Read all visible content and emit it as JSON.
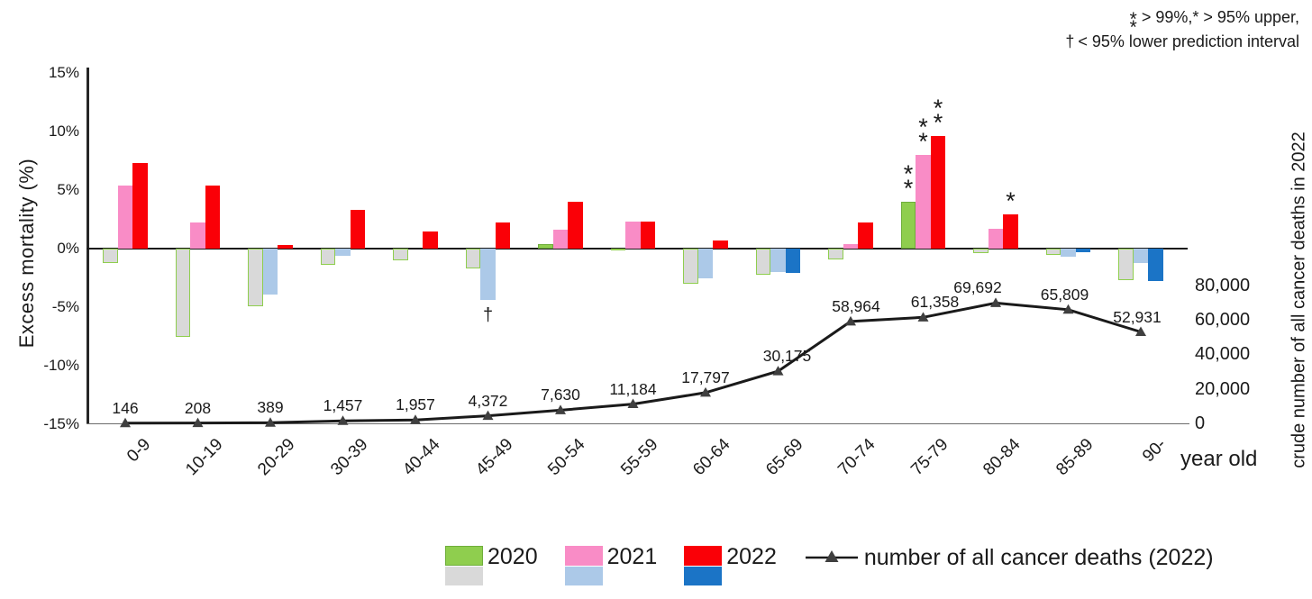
{
  "note": {
    "line1_marker": "**",
    "line1_text": "> 99%,* > 95% upper,",
    "line2_marker": "†",
    "line2_text": "< 95% lower prediction interval"
  },
  "left_axis": {
    "title": "Excess mortality  (%)",
    "labels": [
      "15%",
      "10%",
      "5%",
      "0%",
      "-5%",
      "-10%",
      "-15%"
    ],
    "values": [
      15,
      10,
      5,
      0,
      -5,
      -10,
      -15
    ]
  },
  "right_axis": {
    "title": "crude number of all cancer deaths in 2022",
    "labels": [
      "80,000",
      "60,000",
      "40,000",
      "20,000",
      "0"
    ],
    "values": [
      80000,
      60000,
      40000,
      20000,
      0
    ]
  },
  "x_axis": {
    "unit_label": "year old",
    "categories": [
      "0-9",
      "10-19",
      "20-29",
      "30-39",
      "40-44",
      "45-49",
      "50-54",
      "55-59",
      "60-64",
      "65-69",
      "70-74",
      "75-79",
      "80-84",
      "85-89",
      "90-"
    ]
  },
  "legend": {
    "items": [
      {
        "label": "2020"
      },
      {
        "label": "2021"
      },
      {
        "label": "2022"
      },
      {
        "label": "number of all cancer deaths (2022)"
      }
    ]
  },
  "chart_data": {
    "type": "bar",
    "title": "",
    "categories": [
      "0-9",
      "10-19",
      "20-29",
      "30-39",
      "40-44",
      "45-49",
      "50-54",
      "55-59",
      "60-64",
      "65-69",
      "70-74",
      "75-79",
      "80-84",
      "85-89",
      "90-"
    ],
    "ylabel_left": "Excess mortality  (%)",
    "ylabel_right": "crude number of all cancer deaths in 2022",
    "ylim_left_percent": [
      -15,
      15
    ],
    "right_axis_ticks": [
      0,
      20000,
      40000,
      60000,
      80000
    ],
    "grid": false,
    "legend_position": "bottom",
    "series": [
      {
        "name": "2020",
        "positive_color": "#8FCE4E",
        "positive_border": "#6FAE3B",
        "negative_color": "#D9D9D9",
        "negative_border": "#8FCE4E",
        "values": [
          -1.2,
          -7.5,
          -4.9,
          -1.4,
          -1.0,
          -1.7,
          0.4,
          -0.1,
          -3.0,
          -2.2,
          -0.9,
          4.0,
          -0.4,
          -0.5,
          -2.7
        ]
      },
      {
        "name": "2021",
        "positive_color": "#F98CC6",
        "positive_border": "#F98CC6",
        "negative_color": "#ACC9E8",
        "negative_border": "#ACC9E8",
        "values": [
          5.4,
          2.2,
          -3.9,
          -0.6,
          0,
          -4.4,
          1.6,
          2.3,
          -2.5,
          -2.0,
          0.4,
          8.0,
          1.7,
          -0.7,
          -1.2
        ]
      },
      {
        "name": "2022",
        "positive_color": "#FA0007",
        "positive_border": "#FA0007",
        "negative_color": "#1B74C6",
        "negative_border": "#1B74C6",
        "values": [
          7.3,
          5.4,
          0.3,
          3.3,
          1.5,
          2.2,
          4.0,
          2.3,
          0.7,
          -2.1,
          2.2,
          9.6,
          2.9,
          -0.3,
          -2.8
        ]
      }
    ],
    "line_series": {
      "name": "number of all cancer deaths (2022)",
      "color": "#1A1A1A",
      "marker": "triangle",
      "marker_color": "#3F3F3F",
      "values": [
        146,
        208,
        389,
        1457,
        1957,
        4372,
        7630,
        11184,
        17797,
        30175,
        58964,
        61358,
        69692,
        65809,
        52931
      ],
      "labels": [
        "146",
        "208",
        "389",
        "1,457",
        "1,957",
        "4,372",
        "7,630",
        "11,184",
        "17,797",
        "30,175",
        "58,964",
        "61,358",
        "69,692",
        "65,809",
        "52,931"
      ]
    },
    "significance": [
      {
        "category": "45-49",
        "series": "2021",
        "mark": "†",
        "position": "below"
      },
      {
        "category": "75-79",
        "series": "2020",
        "mark": "**",
        "position": "above"
      },
      {
        "category": "75-79",
        "series": "2021",
        "mark": "**",
        "position": "above"
      },
      {
        "category": "75-79",
        "series": "2022",
        "mark": "**",
        "position": "above"
      },
      {
        "category": "80-84",
        "series": "2022",
        "mark": "*",
        "position": "above"
      }
    ]
  }
}
